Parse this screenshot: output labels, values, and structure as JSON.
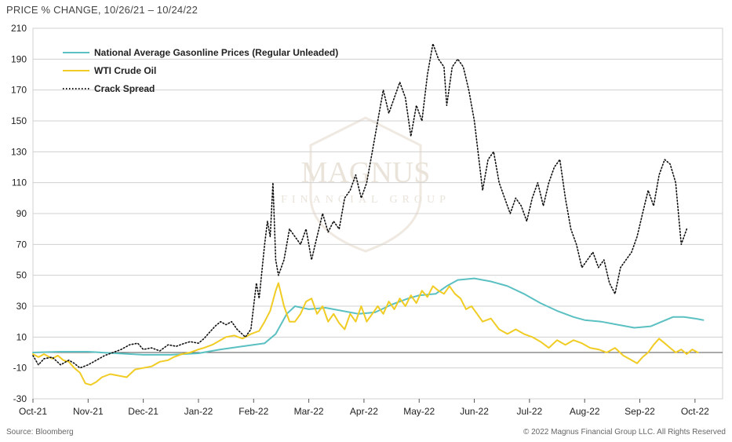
{
  "header": {
    "title": "PRICE % CHANGE, 10/26/21 – 10/24/22"
  },
  "footer": {
    "source": "Source: Bloomberg",
    "copyright": "© 2022 Magnus Financial Group LLC. All Rights Reserved"
  },
  "watermark": {
    "line1": "MAGNUS",
    "line2": "FINANCIAL GROUP"
  },
  "colors": {
    "gasoline": "#5bc0c2",
    "wti": "#f0cc24",
    "crack": "#111111",
    "grid": "#d0d0d0",
    "axis": "#555555"
  },
  "chart_data": {
    "type": "line",
    "title": "PRICE % CHANGE, 10/26/21 – 10/24/22",
    "xlabel": "",
    "ylabel": "",
    "x_unit": "months since start of Oct-21",
    "xlim": [
      0,
      12.5
    ],
    "ylim": [
      -30,
      210
    ],
    "y_ticks": [
      -30,
      -10,
      10,
      30,
      50,
      70,
      90,
      110,
      130,
      150,
      170,
      190,
      210
    ],
    "x_ticks": [
      {
        "label": "Oct-21",
        "x": 0
      },
      {
        "label": "Nov-21",
        "x": 1
      },
      {
        "label": "Dec-21",
        "x": 2
      },
      {
        "label": "Jan-22",
        "x": 3
      },
      {
        "label": "Feb-22",
        "x": 4
      },
      {
        "label": "Mar-22",
        "x": 5
      },
      {
        "label": "Apr-22",
        "x": 6
      },
      {
        "label": "May-22",
        "x": 7
      },
      {
        "label": "Jun-22",
        "x": 8
      },
      {
        "label": "Jul-22",
        "x": 9
      },
      {
        "label": "Aug-22",
        "x": 10
      },
      {
        "label": "Sep-22",
        "x": 11
      },
      {
        "label": "Oct-22",
        "x": 12
      }
    ],
    "grid": true,
    "legend_position": "top-left",
    "series": [
      {
        "name": "National Average Gasonline Prices (Regular Unleaded)",
        "style": "solid",
        "points": [
          [
            0,
            0
          ],
          [
            0.5,
            0.5
          ],
          [
            1,
            0.5
          ],
          [
            1.5,
            -0.5
          ],
          [
            2,
            -1.5
          ],
          [
            2.5,
            -1.5
          ],
          [
            3,
            -0.5
          ],
          [
            3.4,
            2
          ],
          [
            3.8,
            4
          ],
          [
            4.2,
            6
          ],
          [
            4.4,
            12
          ],
          [
            4.6,
            25
          ],
          [
            4.75,
            30
          ],
          [
            5,
            28
          ],
          [
            5.3,
            29
          ],
          [
            5.6,
            27
          ],
          [
            5.9,
            25
          ],
          [
            6.2,
            26
          ],
          [
            6.5,
            31
          ],
          [
            6.8,
            35
          ],
          [
            7,
            37
          ],
          [
            7.3,
            38
          ],
          [
            7.5,
            43
          ],
          [
            7.7,
            47
          ],
          [
            8,
            48
          ],
          [
            8.3,
            46
          ],
          [
            8.6,
            43
          ],
          [
            8.9,
            38
          ],
          [
            9.2,
            32
          ],
          [
            9.5,
            27
          ],
          [
            9.8,
            23
          ],
          [
            10,
            21
          ],
          [
            10.3,
            20
          ],
          [
            10.6,
            18
          ],
          [
            10.9,
            16
          ],
          [
            11.2,
            17
          ],
          [
            11.4,
            20
          ],
          [
            11.6,
            23
          ],
          [
            11.8,
            23
          ],
          [
            12,
            22
          ],
          [
            12.15,
            21
          ]
        ]
      },
      {
        "name": "WTI Crude Oil",
        "style": "solid",
        "points": [
          [
            0,
            -1
          ],
          [
            0.1,
            -3
          ],
          [
            0.2,
            -1
          ],
          [
            0.35,
            -4
          ],
          [
            0.45,
            -2
          ],
          [
            0.55,
            -5
          ],
          [
            0.65,
            -6
          ],
          [
            0.75,
            -10
          ],
          [
            0.85,
            -13
          ],
          [
            0.95,
            -20
          ],
          [
            1.05,
            -21
          ],
          [
            1.15,
            -19
          ],
          [
            1.25,
            -16
          ],
          [
            1.4,
            -14
          ],
          [
            1.55,
            -15
          ],
          [
            1.7,
            -16
          ],
          [
            1.85,
            -11
          ],
          [
            2,
            -10
          ],
          [
            2.15,
            -9
          ],
          [
            2.3,
            -6
          ],
          [
            2.45,
            -5
          ],
          [
            2.55,
            -3
          ],
          [
            2.7,
            -1
          ],
          [
            2.85,
            0
          ],
          [
            3,
            2
          ],
          [
            3.1,
            3
          ],
          [
            3.25,
            5
          ],
          [
            3.4,
            8
          ],
          [
            3.5,
            10
          ],
          [
            3.65,
            11
          ],
          [
            3.8,
            9
          ],
          [
            3.95,
            12
          ],
          [
            4.1,
            14
          ],
          [
            4.2,
            20
          ],
          [
            4.3,
            27
          ],
          [
            4.4,
            40
          ],
          [
            4.45,
            45
          ],
          [
            4.55,
            30
          ],
          [
            4.65,
            20
          ],
          [
            4.75,
            20
          ],
          [
            4.85,
            25
          ],
          [
            4.95,
            33
          ],
          [
            5.05,
            35
          ],
          [
            5.15,
            25
          ],
          [
            5.25,
            30
          ],
          [
            5.35,
            20
          ],
          [
            5.45,
            25
          ],
          [
            5.55,
            19
          ],
          [
            5.65,
            15
          ],
          [
            5.75,
            25
          ],
          [
            5.85,
            20
          ],
          [
            5.95,
            30
          ],
          [
            6.05,
            20
          ],
          [
            6.15,
            25
          ],
          [
            6.25,
            30
          ],
          [
            6.35,
            25
          ],
          [
            6.45,
            33
          ],
          [
            6.55,
            28
          ],
          [
            6.65,
            35
          ],
          [
            6.75,
            30
          ],
          [
            6.85,
            37
          ],
          [
            6.95,
            32
          ],
          [
            7.05,
            40
          ],
          [
            7.15,
            36
          ],
          [
            7.25,
            43
          ],
          [
            7.35,
            40
          ],
          [
            7.45,
            38
          ],
          [
            7.55,
            43
          ],
          [
            7.65,
            38
          ],
          [
            7.75,
            35
          ],
          [
            7.85,
            28
          ],
          [
            7.95,
            30
          ],
          [
            8.05,
            25
          ],
          [
            8.15,
            20
          ],
          [
            8.3,
            22
          ],
          [
            8.45,
            15
          ],
          [
            8.6,
            12
          ],
          [
            8.75,
            15
          ],
          [
            8.9,
            12
          ],
          [
            9.05,
            10
          ],
          [
            9.2,
            7
          ],
          [
            9.35,
            3
          ],
          [
            9.5,
            8
          ],
          [
            9.65,
            5
          ],
          [
            9.8,
            8
          ],
          [
            9.95,
            6
          ],
          [
            10.1,
            3
          ],
          [
            10.25,
            2
          ],
          [
            10.4,
            0
          ],
          [
            10.55,
            3
          ],
          [
            10.7,
            -2
          ],
          [
            10.85,
            -5
          ],
          [
            10.95,
            -7
          ],
          [
            11.05,
            -3
          ],
          [
            11.15,
            0
          ],
          [
            11.25,
            5
          ],
          [
            11.35,
            9
          ],
          [
            11.45,
            6
          ],
          [
            11.55,
            3
          ],
          [
            11.65,
            0
          ],
          [
            11.75,
            2
          ],
          [
            11.85,
            -1
          ],
          [
            11.95,
            2
          ],
          [
            12.05,
            0
          ]
        ]
      },
      {
        "name": "Crack Spread",
        "style": "dotted",
        "points": [
          [
            0,
            -2
          ],
          [
            0.1,
            -8
          ],
          [
            0.2,
            -4
          ],
          [
            0.35,
            -3
          ],
          [
            0.5,
            -8
          ],
          [
            0.65,
            -5
          ],
          [
            0.75,
            -7
          ],
          [
            0.85,
            -10
          ],
          [
            1,
            -8
          ],
          [
            1.15,
            -5
          ],
          [
            1.3,
            -2
          ],
          [
            1.45,
            0
          ],
          [
            1.6,
            2
          ],
          [
            1.75,
            5
          ],
          [
            1.9,
            6
          ],
          [
            2,
            2
          ],
          [
            2.15,
            3
          ],
          [
            2.3,
            1
          ],
          [
            2.45,
            5
          ],
          [
            2.6,
            4
          ],
          [
            2.75,
            6
          ],
          [
            2.85,
            7
          ],
          [
            3,
            6
          ],
          [
            3.1,
            9
          ],
          [
            3.2,
            13
          ],
          [
            3.3,
            17
          ],
          [
            3.4,
            20
          ],
          [
            3.5,
            18
          ],
          [
            3.6,
            20
          ],
          [
            3.7,
            15
          ],
          [
            3.85,
            10
          ],
          [
            3.95,
            15
          ],
          [
            4,
            30
          ],
          [
            4.05,
            45
          ],
          [
            4.1,
            35
          ],
          [
            4.2,
            70
          ],
          [
            4.25,
            85
          ],
          [
            4.3,
            75
          ],
          [
            4.35,
            110
          ],
          [
            4.4,
            60
          ],
          [
            4.45,
            50
          ],
          [
            4.55,
            60
          ],
          [
            4.65,
            80
          ],
          [
            4.75,
            75
          ],
          [
            4.85,
            70
          ],
          [
            4.95,
            80
          ],
          [
            5.05,
            60
          ],
          [
            5.15,
            75
          ],
          [
            5.25,
            90
          ],
          [
            5.35,
            78
          ],
          [
            5.45,
            85
          ],
          [
            5.55,
            80
          ],
          [
            5.65,
            100
          ],
          [
            5.75,
            105
          ],
          [
            5.85,
            115
          ],
          [
            5.95,
            100
          ],
          [
            6.05,
            110
          ],
          [
            6.15,
            130
          ],
          [
            6.25,
            150
          ],
          [
            6.35,
            170
          ],
          [
            6.45,
            155
          ],
          [
            6.55,
            165
          ],
          [
            6.65,
            175
          ],
          [
            6.75,
            165
          ],
          [
            6.85,
            140
          ],
          [
            6.95,
            160
          ],
          [
            7.05,
            150
          ],
          [
            7.15,
            180
          ],
          [
            7.25,
            200
          ],
          [
            7.35,
            190
          ],
          [
            7.45,
            185
          ],
          [
            7.5,
            160
          ],
          [
            7.6,
            185
          ],
          [
            7.7,
            190
          ],
          [
            7.8,
            185
          ],
          [
            7.9,
            170
          ],
          [
            8,
            150
          ],
          [
            8.1,
            120
          ],
          [
            8.15,
            105
          ],
          [
            8.25,
            125
          ],
          [
            8.35,
            130
          ],
          [
            8.45,
            110
          ],
          [
            8.55,
            100
          ],
          [
            8.65,
            90
          ],
          [
            8.75,
            100
          ],
          [
            8.85,
            95
          ],
          [
            8.95,
            85
          ],
          [
            9.05,
            100
          ],
          [
            9.15,
            110
          ],
          [
            9.25,
            95
          ],
          [
            9.35,
            110
          ],
          [
            9.45,
            120
          ],
          [
            9.55,
            125
          ],
          [
            9.65,
            100
          ],
          [
            9.75,
            80
          ],
          [
            9.85,
            70
          ],
          [
            9.95,
            55
          ],
          [
            10.05,
            60
          ],
          [
            10.15,
            65
          ],
          [
            10.25,
            55
          ],
          [
            10.35,
            60
          ],
          [
            10.45,
            45
          ],
          [
            10.55,
            38
          ],
          [
            10.65,
            55
          ],
          [
            10.75,
            60
          ],
          [
            10.85,
            65
          ],
          [
            10.95,
            75
          ],
          [
            11.05,
            90
          ],
          [
            11.15,
            105
          ],
          [
            11.25,
            95
          ],
          [
            11.35,
            115
          ],
          [
            11.45,
            125
          ],
          [
            11.55,
            122
          ],
          [
            11.65,
            110
          ],
          [
            11.75,
            70
          ],
          [
            11.85,
            80
          ]
        ]
      }
    ]
  }
}
